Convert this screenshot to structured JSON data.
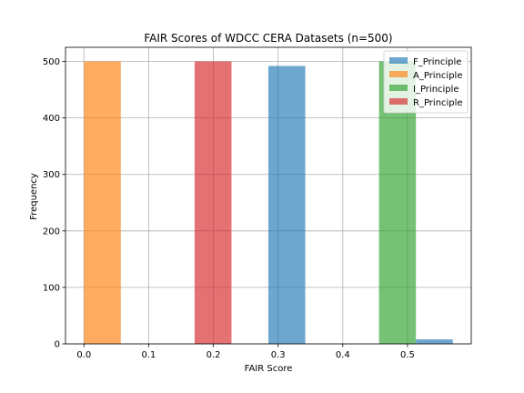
{
  "chart_data": {
    "type": "bar",
    "title": "FAIR Scores of WDCC CERA Datasets (n=500)",
    "xlabel": "FAIR Score",
    "ylabel": "Frequency",
    "xlim": [
      -0.0285,
      0.5985
    ],
    "ylim": [
      0,
      525
    ],
    "xticks": [
      0.0,
      0.1,
      0.2,
      0.3,
      0.4,
      0.5
    ],
    "xtick_labels": [
      "0.0",
      "0.1",
      "0.2",
      "0.3",
      "0.4",
      "0.5"
    ],
    "yticks": [
      0,
      100,
      200,
      300,
      400,
      500
    ],
    "ytick_labels": [
      "0",
      "100",
      "200",
      "300",
      "400",
      "500"
    ],
    "grid": true,
    "legend_position": "top-right",
    "series": [
      {
        "name": "F_Principle",
        "color": "#1f77b4",
        "bars": [
          {
            "x0": 0.285,
            "x1": 0.342,
            "value": 492
          },
          {
            "x0": 0.513,
            "x1": 0.57,
            "value": 8
          }
        ]
      },
      {
        "name": "A_Principle",
        "color": "#ff7f0e",
        "bars": [
          {
            "x0": 0.0,
            "x1": 0.057,
            "value": 500
          }
        ]
      },
      {
        "name": "I_Principle",
        "color": "#2ca02c",
        "bars": [
          {
            "x0": 0.456,
            "x1": 0.513,
            "value": 500
          }
        ]
      },
      {
        "name": "R_Principle",
        "color": "#d62728",
        "bars": [
          {
            "x0": 0.171,
            "x1": 0.228,
            "value": 500
          }
        ]
      }
    ]
  }
}
